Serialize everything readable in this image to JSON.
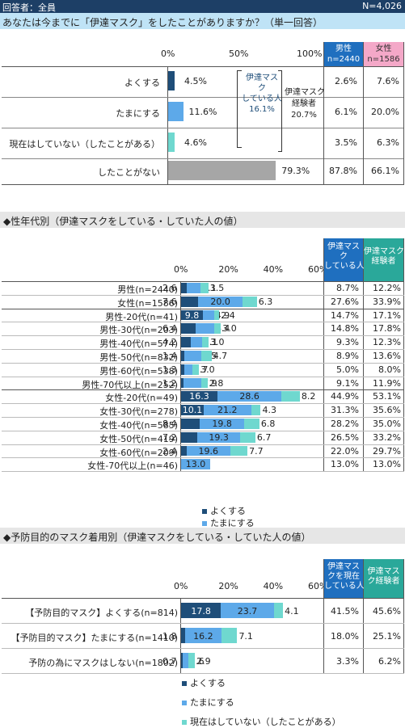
{
  "header": {
    "left": "回答者：全員",
    "right": "N=4,026"
  },
  "question": "あなたは今までに「伊達マスク」をしたことがありますか？（単一回答）",
  "colors": {
    "often": "#1f4e79",
    "sometimes": "#5da9e9",
    "past": "#6fd8cf",
    "never": "#a6a6a6",
    "male": "#1f6fbf",
    "female": "#f4a8c8",
    "teal": "#2aa89a"
  },
  "chart1": {
    "axis": [
      "0%",
      "50%",
      "100%"
    ],
    "rows": [
      {
        "label": "よくする",
        "value": 4.5,
        "text": "4.5%",
        "male": "2.6%",
        "female": "7.6%"
      },
      {
        "label": "たまにする",
        "value": 11.6,
        "text": "11.6%",
        "male": "6.1%",
        "female": "20.0%"
      },
      {
        "label": "現在はしていない（したことがある）",
        "value": 4.6,
        "text": "4.6%",
        "male": "3.5%",
        "female": "6.3%"
      },
      {
        "label": "したことがない",
        "value": 79.3,
        "text": "79.3%",
        "male": "87.8%",
        "female": "66.1%"
      }
    ],
    "bracket1": [
      "伊達マス",
      "ク",
      "している人",
      "16.1%"
    ],
    "bracket2": [
      "伊達マスク",
      "経験者",
      "20.7%"
    ],
    "male_header": [
      "男性",
      "n=2440"
    ],
    "female_header": [
      "女性",
      "n=1586"
    ]
  },
  "section2": "◆性年代別（伊達マスクをしている・していた人の値）",
  "chart_data": [
    {
      "type": "bar",
      "categories": [
        "男性(n=2440)",
        "女性(n=1586)",
        "男性-20代(n=41)",
        "男性-30代(n=203)",
        "男性-40代(n=574)",
        "男性-50代(n=832)",
        "男性-60代(n=538)",
        "男性-70代以上(n=252)",
        "女性-20代(n=49)",
        "女性-30代(n=278)",
        "女性-40代(n=585)",
        "女性-50代(n=419)",
        "女性-60代(n=209)",
        "女性-70代以上(n=46)"
      ],
      "series": [
        {
          "name": "よくする",
          "values": [
            2.6,
            7.6,
            9.8,
            6.4,
            4.2,
            1.4,
            1.3,
            1.2,
            16.3,
            10.1,
            8.4,
            7.2,
            2.4,
            0
          ]
        },
        {
          "name": "たまにする",
          "values": [
            6.1,
            20.0,
            4.9,
            8.4,
            5.1,
            7.5,
            3.7,
            7.9,
            28.6,
            21.2,
            19.8,
            19.3,
            19.6,
            13.0
          ]
        },
        {
          "name": "現在はしていない（したことがある）",
          "values": [
            3.5,
            6.3,
            2.4,
            3.0,
            3.0,
            4.7,
            3.0,
            2.8,
            8.2,
            4.3,
            6.8,
            6.7,
            7.7,
            0
          ]
        }
      ],
      "axis_ticks": [
        "0%",
        "20%",
        "40%",
        "60%"
      ],
      "xlim": [
        0,
        60
      ],
      "col1_header": [
        "伊達マス",
        "ク",
        "している人"
      ],
      "col2_header": [
        "伊達マスク",
        "経験者"
      ],
      "col1": [
        "8.7%",
        "27.6%",
        "14.7%",
        "14.8%",
        "9.3%",
        "8.9%",
        "5.0%",
        "9.1%",
        "44.9%",
        "31.3%",
        "28.2%",
        "26.5%",
        "22.0%",
        "13.0%"
      ],
      "col2": [
        "12.2%",
        "33.9%",
        "17.1%",
        "17.8%",
        "12.3%",
        "13.6%",
        "8.0%",
        "11.9%",
        "53.1%",
        "35.6%",
        "35.0%",
        "33.2%",
        "29.7%",
        "13.0%"
      ]
    },
    {
      "type": "bar",
      "categories": [
        "【予防目的マスク】よくする(n=814)",
        "【予防目的マスク】たまにする(n=1410)",
        "予防の為にマスクはしない(n=1802)"
      ],
      "series": [
        {
          "name": "よくする",
          "values": [
            17.8,
            1.8,
            0.7
          ]
        },
        {
          "name": "たまにする",
          "values": [
            23.7,
            16.2,
            2.6
          ]
        },
        {
          "name": "現在はしていない（したことがある）",
          "values": [
            4.1,
            7.1,
            2.9
          ]
        }
      ],
      "axis_ticks": [
        "0%",
        "20%",
        "40%",
        "60%"
      ],
      "xlim": [
        0,
        60
      ],
      "col1_header": [
        "伊達マス",
        "クを現在",
        "している人"
      ],
      "col2_header": [
        "伊達マス",
        "ク経験者"
      ],
      "col1": [
        "41.5%",
        "18.0%",
        "3.3%"
      ],
      "col2": [
        "45.6%",
        "25.1%",
        "6.2%"
      ]
    }
  ],
  "section3": "◆予防目的のマスク着用別（伊達マスクをしている・していた人の値）",
  "legend": [
    "よくする",
    "たまにする",
    "現在はしていない（したことがある）"
  ]
}
